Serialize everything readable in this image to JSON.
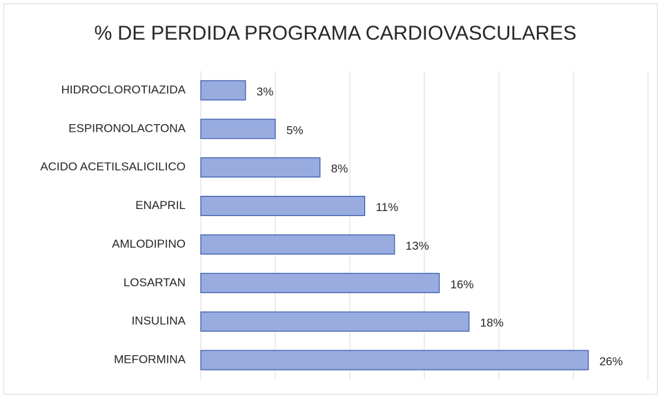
{
  "chart_data": {
    "type": "bar",
    "orientation": "horizontal",
    "title": "% DE PERDIDA PROGRAMA CARDIOVASCULARES",
    "categories": [
      "HIDROCLOROTIAZIDA",
      "ESPIRONOLACTONA",
      "ACIDO ACETILSALICILICO",
      "ENAPRIL",
      "AMLODIPINO",
      "LOSARTAN",
      "INSULINA",
      "MEFORMINA"
    ],
    "values": [
      3,
      5,
      8,
      11,
      13,
      16,
      18,
      26
    ],
    "value_labels": [
      "3%",
      "5%",
      "8%",
      "11%",
      "13%",
      "16%",
      "18%",
      "26%"
    ],
    "color": "#98ace0",
    "edge_color": "#3558a8",
    "xlim": [
      0,
      30
    ],
    "xticks": [
      0,
      5,
      10,
      15,
      20,
      25,
      30
    ],
    "grid": true
  }
}
